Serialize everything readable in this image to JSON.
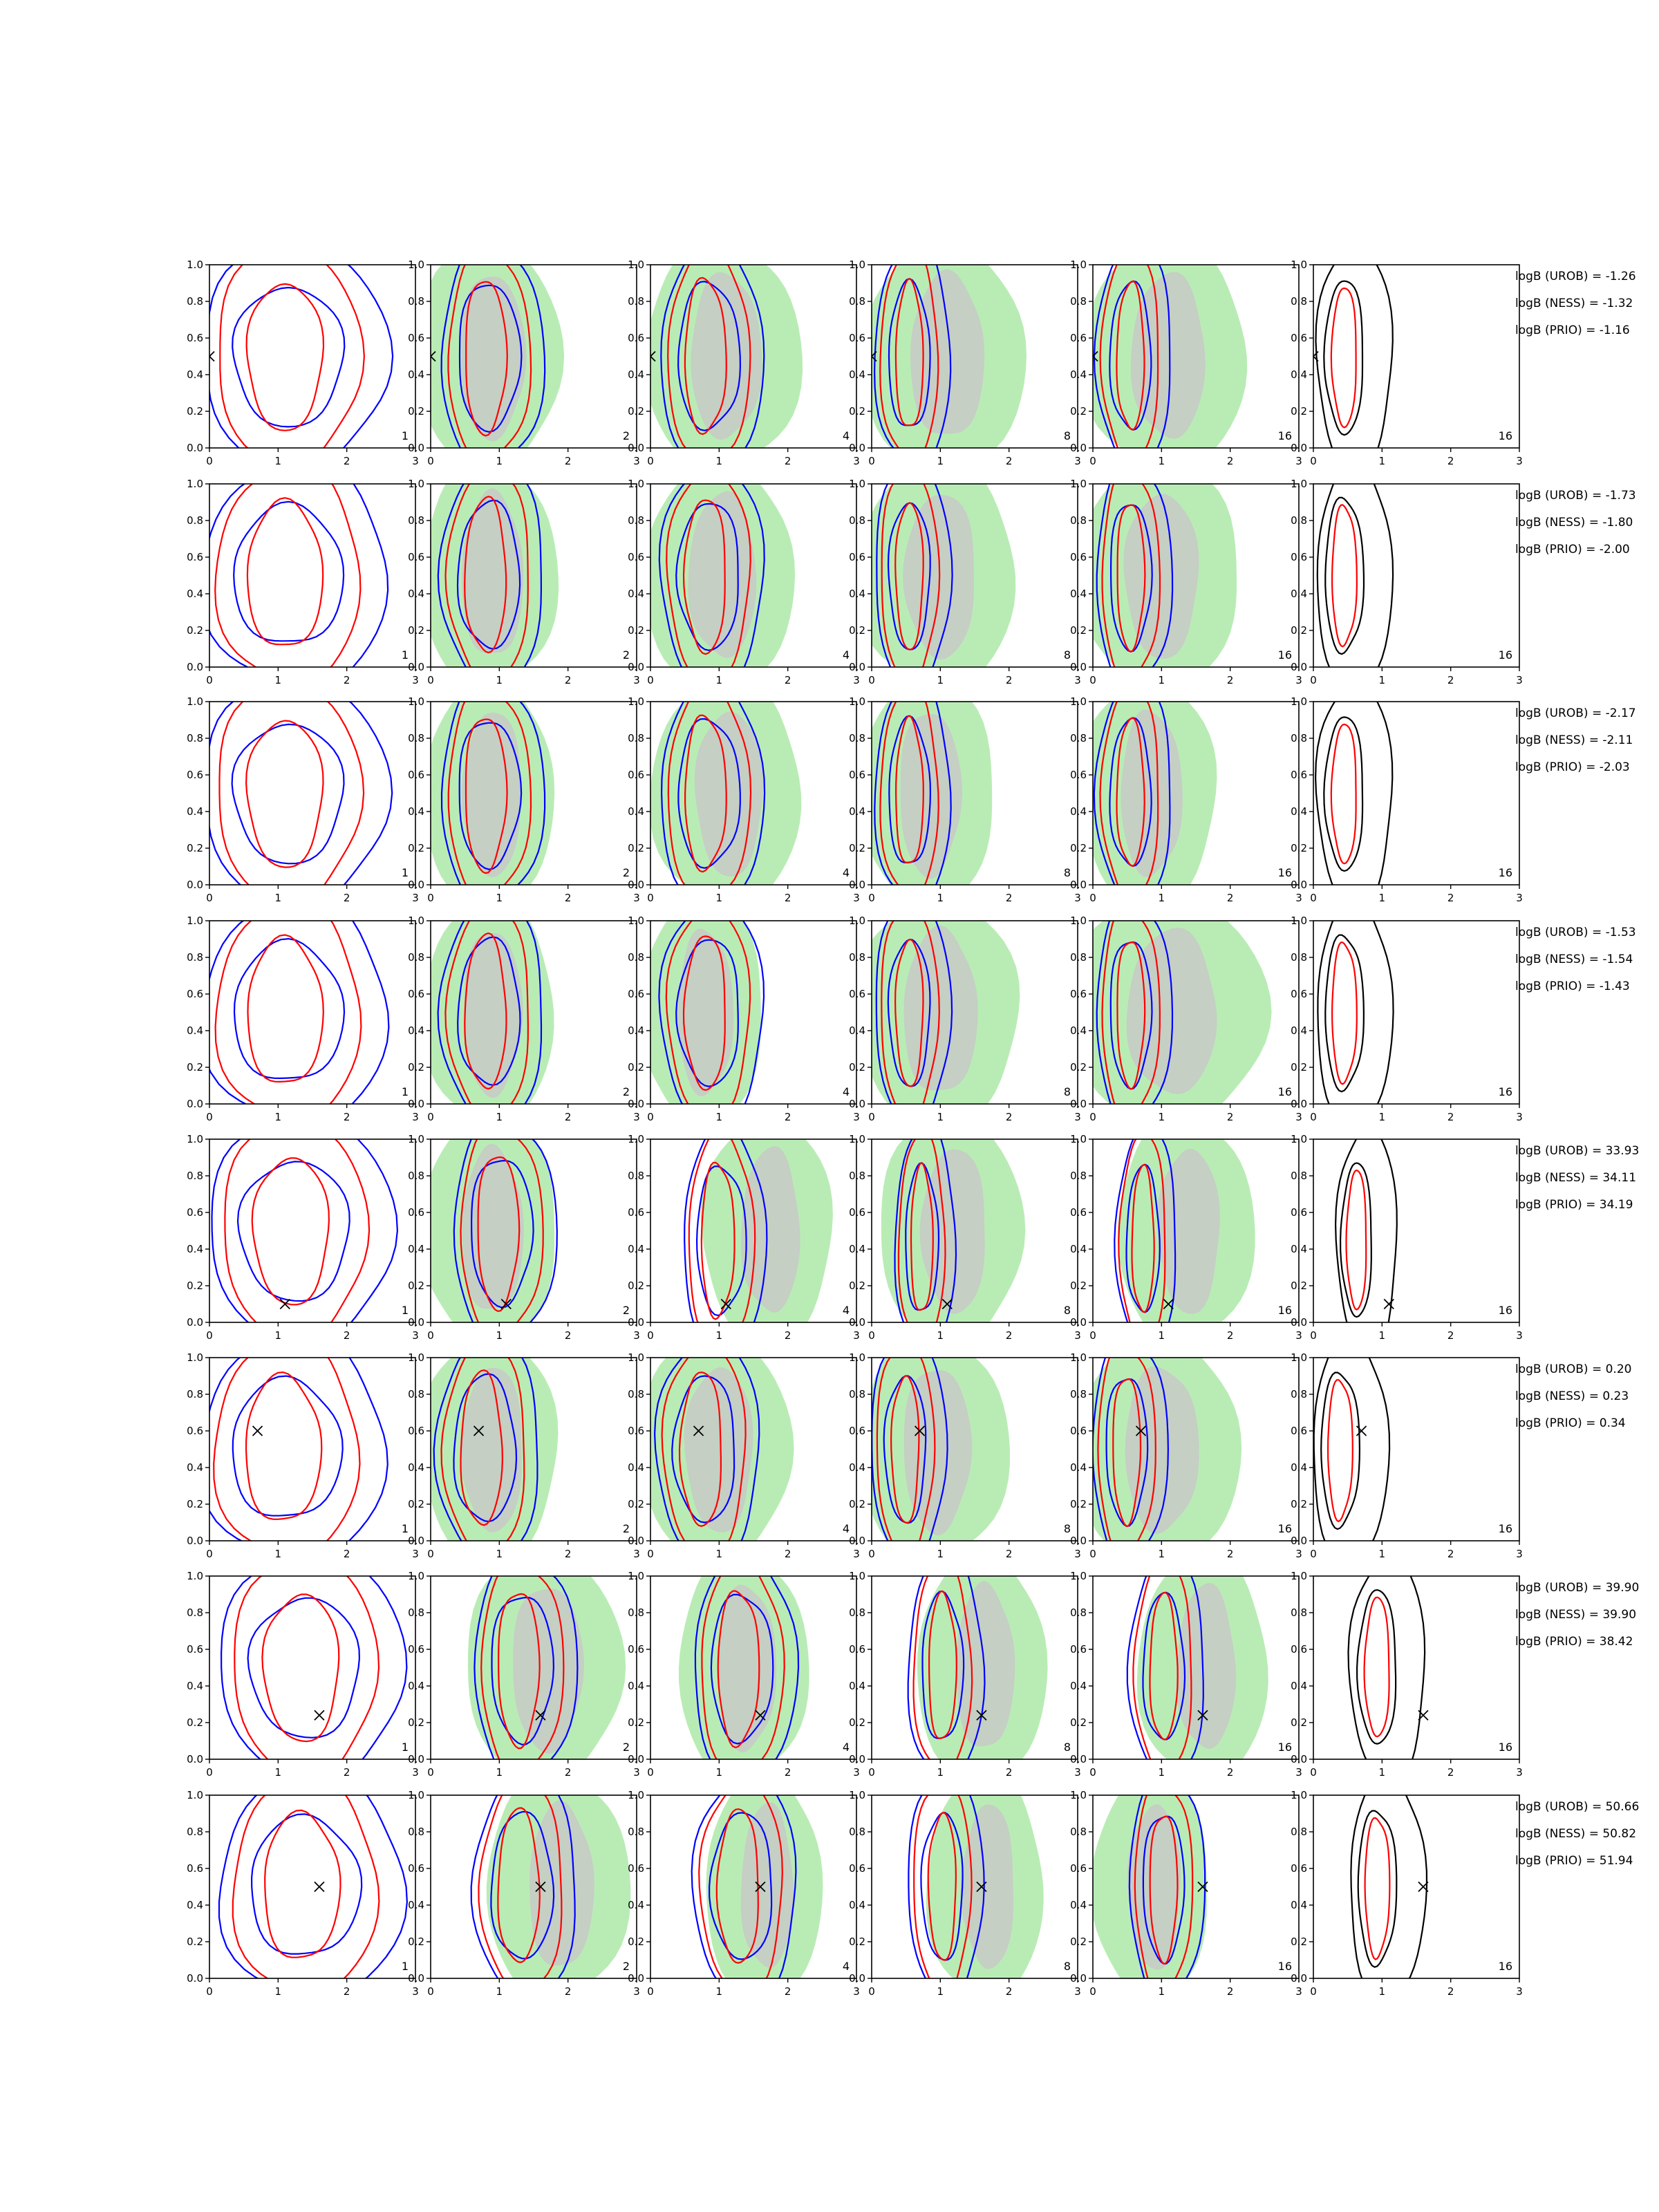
{
  "chart_data": {
    "type": "contour-grid",
    "description_axes": {
      "xlim": [
        0,
        3
      ],
      "ylim": [
        0.0,
        1.0
      ],
      "xticks": [
        "0",
        "1",
        "2",
        "3"
      ],
      "yticks": [
        "0.0",
        "0.2",
        "0.4",
        "0.6",
        "0.8",
        "1.0"
      ],
      "grid": false
    },
    "column_labels": [
      "1",
      "2",
      "4",
      "8",
      "16",
      "16"
    ],
    "colors": {
      "blue": "#0000ff",
      "red": "#ff0000",
      "black": "#000000",
      "green_fill": "#b9ecb5",
      "grey_fill": "#c8c8c8"
    },
    "rows": [
      {
        "truth": [
          0.0,
          0.5
        ],
        "logB": {
          "UROB": "logB (UROB) = -1.26",
          "NESS": "logB (NESS) = -1.32",
          "PRIO": "logB (PRIO) = -1.16"
        },
        "green": [
          null,
          [
            0.85,
            1.05
          ],
          [
            1.05,
            1.15
          ],
          [
            1.05,
            1.2
          ],
          [
            1.05,
            1.2
          ],
          null
        ]
      },
      {
        "truth": null,
        "logB": {
          "UROB": "logB (UROB) = -1.73",
          "NESS": "logB (NESS) = -1.80",
          "PRIO": "logB (PRIO) = -2.00"
        },
        "green": [
          null,
          [
            0.85,
            1.0
          ],
          [
            1.0,
            1.1
          ],
          [
            0.95,
            1.15
          ],
          [
            0.95,
            1.2
          ],
          null
        ]
      },
      {
        "truth": null,
        "logB": {
          "UROB": "logB (UROB) = -2.17",
          "NESS": "logB (NESS) = -2.11",
          "PRIO": "logB (PRIO) = -2.03"
        },
        "green": [
          null,
          [
            0.85,
            0.95
          ],
          [
            1.1,
            1.1
          ],
          [
            0.8,
            1.0
          ],
          [
            0.8,
            1.0
          ],
          null
        ]
      },
      {
        "truth": null,
        "logB": {
          "UROB": "logB (UROB) = -1.53",
          "NESS": "logB (NESS) = -1.54",
          "PRIO": "logB (PRIO) = -1.43"
        },
        "green": [
          null,
          [
            0.85,
            0.95
          ],
          [
            0.75,
            0.9
          ],
          [
            0.95,
            1.2
          ],
          [
            1.1,
            1.45
          ],
          null
        ]
      },
      {
        "truth": [
          1.1,
          0.1
        ],
        "logB": {
          "UROB": "logB (UROB) = 33.93",
          "NESS": "logB (NESS) = 34.11",
          "PRIO": "logB (PRIO) = 34.19"
        },
        "green": [
          null,
          [
            0.85,
            1.0
          ],
          [
            1.7,
            0.95
          ],
          [
            1.15,
            1.05
          ],
          [
            1.35,
            1.0
          ],
          null
        ]
      },
      {
        "truth": [
          0.7,
          0.6
        ],
        "logB": {
          "UROB": "logB (UROB) = 0.20",
          "NESS": "logB (NESS) = 0.23",
          "PRIO": "logB (PRIO) = 0.34"
        },
        "green": [
          null,
          [
            0.85,
            1.0
          ],
          [
            0.95,
            1.1
          ],
          [
            0.9,
            1.1
          ],
          [
            0.95,
            1.2
          ],
          null
        ]
      },
      {
        "truth": [
          1.6,
          0.24
        ],
        "logB": {
          "UROB": "logB (UROB) = 39.90",
          "NESS": "logB (NESS) = 39.90",
          "PRIO": "logB (PRIO) = 38.42"
        },
        "green": [
          null,
          [
            1.65,
            1.15
          ],
          [
            1.35,
            0.95
          ],
          [
            1.6,
            0.95
          ],
          [
            1.6,
            0.95
          ],
          null
        ]
      },
      {
        "truth": [
          1.6,
          0.5
        ],
        "logB": {
          "UROB": "logB (UROB) = 50.66",
          "NESS": "logB (NESS) = 50.82",
          "PRIO": "logB (PRIO) = 51.94"
        },
        "green": [
          null,
          [
            1.85,
            1.05
          ],
          [
            1.65,
            0.85
          ],
          [
            1.65,
            0.85
          ],
          [
            0.85,
            0.85
          ],
          null
        ]
      }
    ]
  }
}
